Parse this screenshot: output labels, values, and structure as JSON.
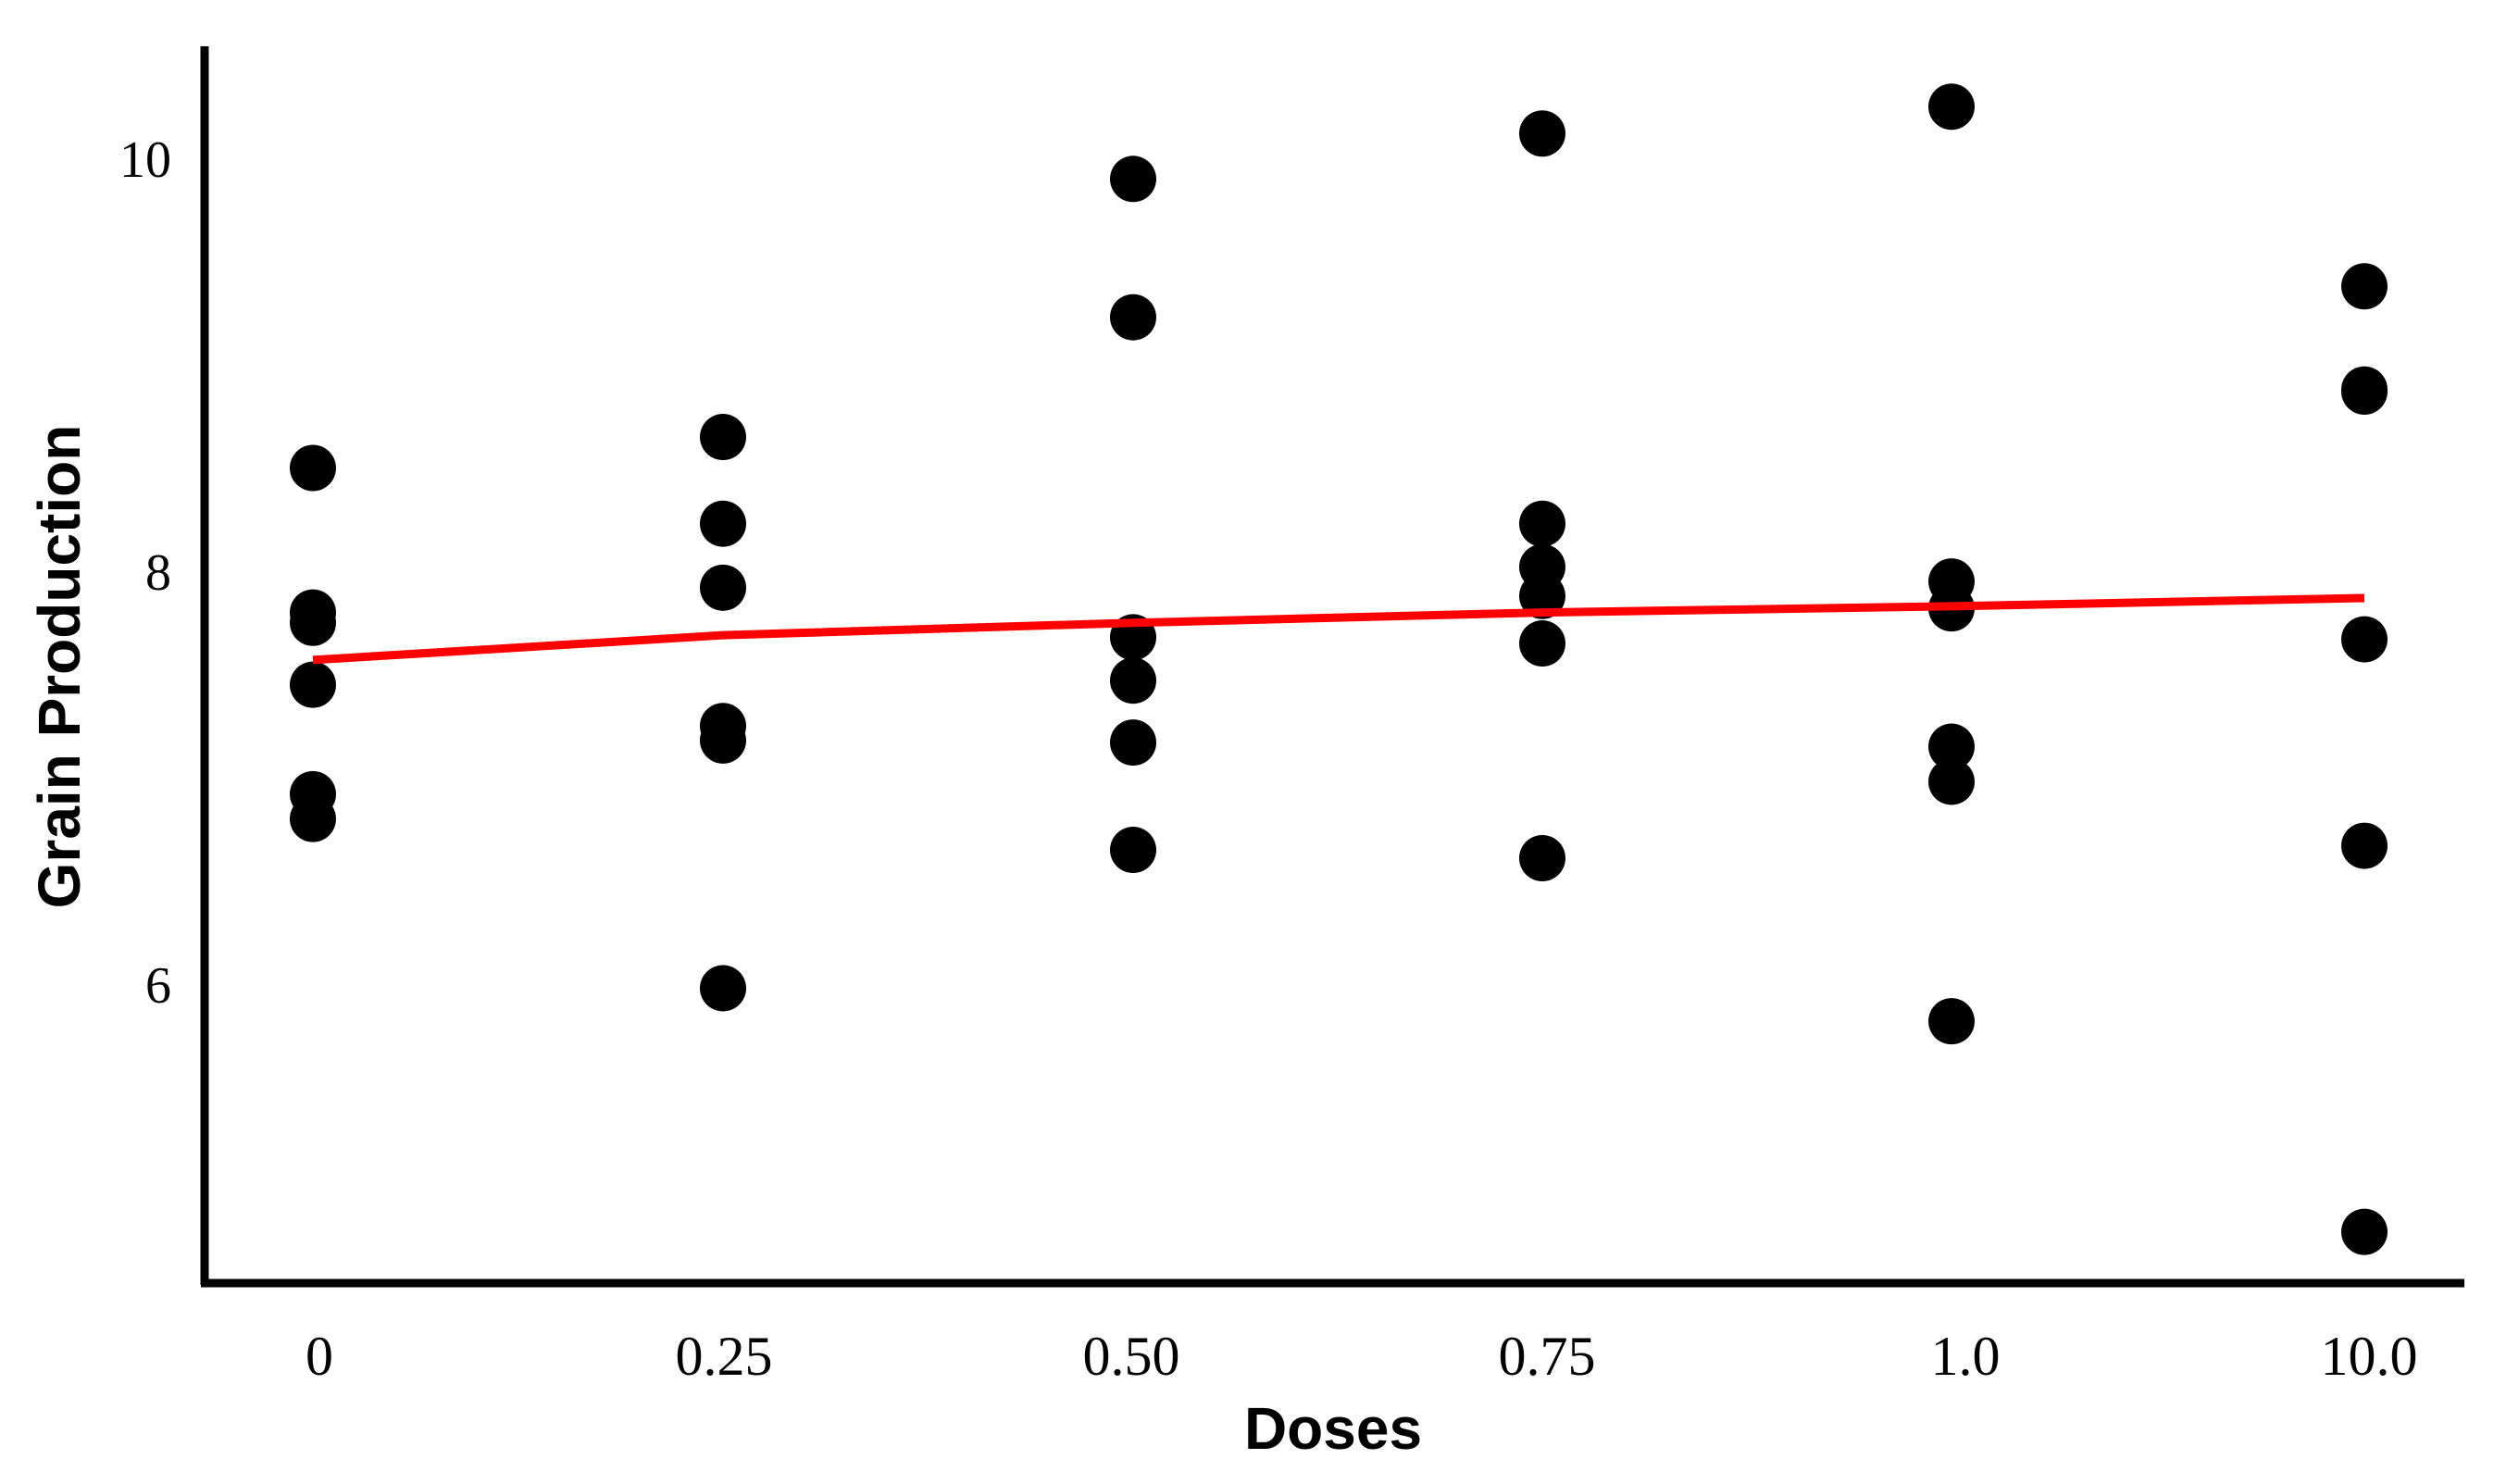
{
  "chart_data": {
    "type": "scatter",
    "title": "",
    "xlabel": "Doses",
    "ylabel": "Grain Production",
    "categories": [
      "0",
      "0.25",
      "0.50",
      "0.75",
      "1.0",
      "10.0"
    ],
    "yticks": [
      "6",
      "8",
      "10"
    ],
    "ylim": [
      4.6,
      10.5
    ],
    "grid": false,
    "legend": "none",
    "marker_color": "#000000",
    "trend_color": "#ff0000",
    "points": [
      {
        "x": "0",
        "y": 8.5
      },
      {
        "x": "0",
        "y": 7.8
      },
      {
        "x": "0",
        "y": 7.75
      },
      {
        "x": "0",
        "y": 7.45
      },
      {
        "x": "0",
        "y": 6.92
      },
      {
        "x": "0",
        "y": 6.8
      },
      {
        "x": "0.25",
        "y": 8.65
      },
      {
        "x": "0.25",
        "y": 8.23
      },
      {
        "x": "0.25",
        "y": 7.92
      },
      {
        "x": "0.25",
        "y": 7.25
      },
      {
        "x": "0.25",
        "y": 7.18
      },
      {
        "x": "0.25",
        "y": 5.98
      },
      {
        "x": "0.50",
        "y": 9.9
      },
      {
        "x": "0.50",
        "y": 9.23
      },
      {
        "x": "0.50",
        "y": 7.68
      },
      {
        "x": "0.50",
        "y": 7.47
      },
      {
        "x": "0.50",
        "y": 7.17
      },
      {
        "x": "0.50",
        "y": 6.65
      },
      {
        "x": "0.75",
        "y": 10.12
      },
      {
        "x": "0.75",
        "y": 8.23
      },
      {
        "x": "0.75",
        "y": 8.02
      },
      {
        "x": "0.75",
        "y": 7.88
      },
      {
        "x": "0.75",
        "y": 7.65
      },
      {
        "x": "0.75",
        "y": 6.61
      },
      {
        "x": "1.0",
        "y": 10.25
      },
      {
        "x": "1.0",
        "y": 7.95
      },
      {
        "x": "1.0",
        "y": 7.82
      },
      {
        "x": "1.0",
        "y": 7.15
      },
      {
        "x": "1.0",
        "y": 6.98
      },
      {
        "x": "1.0",
        "y": 5.82
      },
      {
        "x": "10.0",
        "y": 9.38
      },
      {
        "x": "10.0",
        "y": 8.88
      },
      {
        "x": "10.0",
        "y": 8.87
      },
      {
        "x": "10.0",
        "y": 7.67
      },
      {
        "x": "10.0",
        "y": 6.67
      },
      {
        "x": "10.0",
        "y": 4.8
      }
    ],
    "trend_line": {
      "x": [
        "0",
        "0.25",
        "0.50",
        "0.75",
        "1.0",
        "10.0"
      ],
      "y": [
        7.57,
        7.69,
        7.75,
        7.8,
        7.83,
        7.87
      ]
    }
  }
}
